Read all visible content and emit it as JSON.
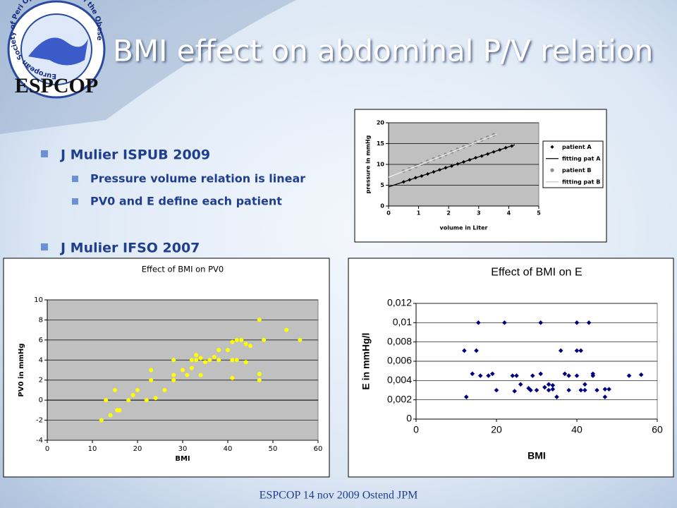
{
  "slide": {
    "title": "BMI effect on abdominal P/V relation",
    "logo": {
      "name": "ESPCOP",
      "ring": "European Society of Peri Operative Care of the Obese Patient"
    },
    "bullets": [
      {
        "text": "J Mulier ISPUB 2009",
        "items": [
          "Pressure volume relation is linear",
          "PV0   and E  define each patient"
        ]
      },
      {
        "text": "J Mulier IFSO 2007"
      }
    ],
    "footer": "ESPCOP 14 nov 2009 Ostend  JPM"
  },
  "chart_data": [
    {
      "type": "scatter",
      "x_label": "volume in Liter",
      "y_label": "pressure in mmHg",
      "xlim": [
        0,
        5
      ],
      "xticks": [
        0,
        1,
        2,
        3,
        4,
        5
      ],
      "ylim": [
        0,
        20
      ],
      "yticks": [
        0,
        5,
        10,
        15,
        20
      ],
      "grid": true,
      "plot_background": "#c0c0c0",
      "legend": "right",
      "series": [
        {
          "name": "patient A",
          "color": "#000000",
          "marker": "diamond",
          "x": [
            0.5,
            0.7,
            0.9,
            1.1,
            1.3,
            1.5,
            1.7,
            1.9,
            2.1,
            2.3,
            2.5,
            2.7,
            2.9,
            3.1,
            3.3,
            3.5,
            3.7,
            3.9,
            4.1
          ],
          "values": [
            5.8,
            6.3,
            6.8,
            7.2,
            7.7,
            8.2,
            8.7,
            9.2,
            9.6,
            10.1,
            10.6,
            11.1,
            11.6,
            12.0,
            12.5,
            13.0,
            13.5,
            14.0,
            14.4
          ]
        },
        {
          "name": "fitting pat A",
          "color": "#000000",
          "marker": "line",
          "x": [
            0,
            4.2
          ],
          "values": [
            4.6,
            14.7
          ]
        },
        {
          "name": "patient B",
          "color": "#8c8c8c",
          "marker": "circle",
          "x": [
            0.5,
            0.7,
            0.9,
            1.1,
            1.3,
            1.5,
            1.7,
            1.9,
            2.1,
            2.3,
            2.5,
            2.7,
            2.9,
            3.1,
            3.3,
            3.5
          ],
          "values": [
            8.4,
            8.9,
            9.5,
            10.1,
            10.7,
            11.3,
            11.8,
            12.4,
            13.0,
            13.6,
            14.2,
            14.7,
            15.3,
            15.9,
            16.5,
            17.1
          ]
        },
        {
          "name": "fitting pat B",
          "color": "#f0f0f0",
          "marker": "line",
          "x": [
            0,
            3.6
          ],
          "values": [
            6.9,
            17.3
          ]
        }
      ]
    },
    {
      "type": "scatter",
      "title": "Effect of BMI on PV0",
      "x_label": "BMI",
      "y_label": "PV0 in mmHg",
      "xlim": [
        0,
        60
      ],
      "xticks": [
        0,
        10,
        20,
        30,
        40,
        50,
        60
      ],
      "ylim": [
        -4,
        10
      ],
      "yticks": [
        -4,
        -2,
        0,
        2,
        4,
        6,
        8,
        10
      ],
      "grid": true,
      "plot_background": "#c0c0c0",
      "series": [
        {
          "color": "#ffff00",
          "marker": "circle",
          "x": [
            12,
            13,
            14,
            15,
            15.5,
            16,
            18,
            19,
            20,
            22,
            23,
            23,
            24,
            26,
            28,
            28,
            28,
            30,
            31,
            32,
            32,
            33,
            33,
            34,
            34,
            35,
            36,
            37,
            38,
            38,
            40,
            41,
            41,
            41,
            42,
            42,
            43,
            44,
            44,
            45,
            47,
            47,
            47,
            48,
            53,
            56
          ],
          "values": [
            -2,
            0,
            -1.5,
            1,
            -1,
            -1,
            0,
            0.5,
            1,
            0,
            3,
            2,
            0.2,
            1,
            4,
            2.5,
            2,
            3,
            2.5,
            3.2,
            4,
            4.5,
            4,
            2.5,
            4.2,
            3.8,
            4,
            4.3,
            5,
            4,
            5,
            2.2,
            5.8,
            4,
            6,
            4,
            6,
            5.6,
            3.8,
            5.4,
            8,
            2.6,
            2,
            6,
            7,
            6
          ]
        }
      ]
    },
    {
      "type": "scatter",
      "title": "Effect of BMI on E",
      "x_label": "BMI",
      "y_label": "E in mmHg/l",
      "xlim": [
        0,
        60
      ],
      "xticks": [
        0,
        20,
        40,
        60
      ],
      "ylim": [
        0,
        0.012
      ],
      "yticks": [
        0,
        {
          "value": 0.002,
          "label": "0,002"
        },
        {
          "value": 0.004,
          "label": "0,004"
        },
        {
          "value": 0.006,
          "label": "0,006"
        },
        {
          "value": 0.008,
          "label": "0,008"
        },
        {
          "value": 0.01,
          "label": "0,01"
        },
        {
          "value": 0.012,
          "label": "0,012"
        }
      ],
      "grid": true,
      "plot_background": "#ffffff",
      "series": [
        {
          "color": "#000080",
          "marker": "diamond",
          "x": [
            12,
            12.5,
            14,
            15,
            15.5,
            16,
            18,
            19,
            20,
            22,
            24,
            24.5,
            25,
            26,
            28,
            28.5,
            29,
            30,
            31,
            31,
            32,
            33,
            33,
            34,
            34,
            35,
            36,
            37,
            38,
            38,
            40,
            40,
            40,
            41,
            41,
            42,
            42,
            43,
            44,
            44,
            45,
            47,
            47,
            48,
            53,
            56
          ],
          "values": [
            0.0071,
            0.0023,
            0.0047,
            0.0071,
            0.01,
            0.0045,
            0.0045,
            0.0047,
            0.003,
            0.01,
            0.0045,
            0.0029,
            0.0045,
            0.0036,
            0.0032,
            0.003,
            0.0045,
            0.003,
            0.0047,
            0.01,
            0.0033,
            0.0036,
            0.003,
            0.0031,
            0.0035,
            0.0023,
            0.0071,
            0.0047,
            0.0045,
            0.003,
            0.01,
            0.0071,
            0.0045,
            0.0071,
            0.003,
            0.0036,
            0.003,
            0.01,
            0.0047,
            0.0045,
            0.003,
            0.0031,
            0.0023,
            0.0031,
            0.0045,
            0.0046
          ]
        }
      ]
    }
  ]
}
